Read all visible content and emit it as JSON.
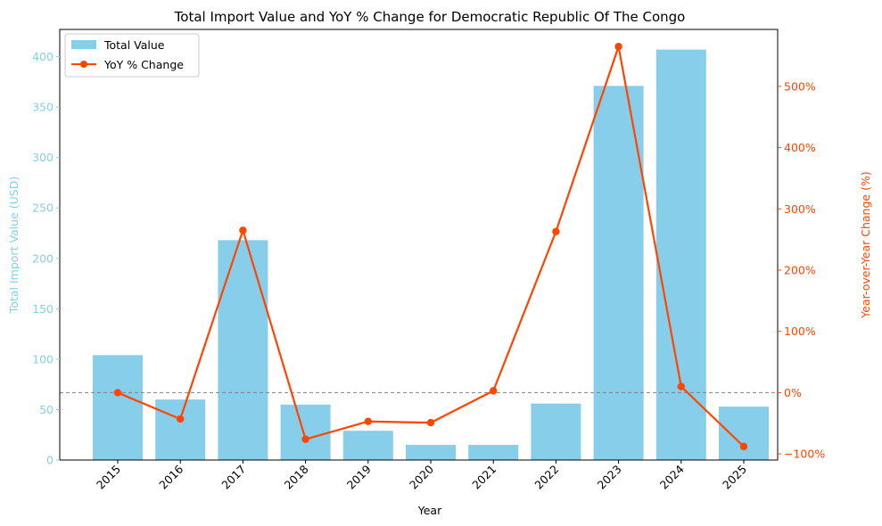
{
  "chart_data": {
    "type": "bar",
    "title": "Total Import Value and YoY % Change for Democratic Republic Of The Congo",
    "xlabel": "Year",
    "ylabel": "Total Import Value (USD)",
    "y2label": "Year-over-Year Change (%)",
    "categories": [
      "2015",
      "2016",
      "2017",
      "2018",
      "2019",
      "2020",
      "2021",
      "2022",
      "2023",
      "2024",
      "2025"
    ],
    "ylim": [
      0,
      427
    ],
    "y2lim": [
      -110,
      593
    ],
    "yticks": [
      0,
      50,
      100,
      150,
      200,
      250,
      300,
      350,
      400
    ],
    "y2ticks": [
      -100,
      0,
      100,
      200,
      300,
      400,
      500
    ],
    "y2tick_labels": [
      "−100%",
      "0%",
      "100%",
      "200%",
      "300%",
      "400%",
      "500%"
    ],
    "series": [
      {
        "name": "Total Value",
        "kind": "bar",
        "axis": "left",
        "color": "#87ceeb",
        "values": [
          104,
          60,
          218,
          55,
          29,
          15,
          15,
          56,
          371,
          407,
          53
        ]
      },
      {
        "name": "YoY % Change",
        "kind": "line",
        "axis": "right",
        "color": "#ff4500",
        "values": [
          0,
          -43,
          265,
          -76,
          -47,
          -49,
          3,
          263,
          565,
          10,
          -88
        ]
      }
    ],
    "reference_line": {
      "y2": 0,
      "style": "dashed",
      "color": "#808080"
    },
    "grid": false,
    "legend_position": "top-left",
    "left_axis_color": "#87ceeb",
    "right_axis_color": "#ff4500"
  }
}
